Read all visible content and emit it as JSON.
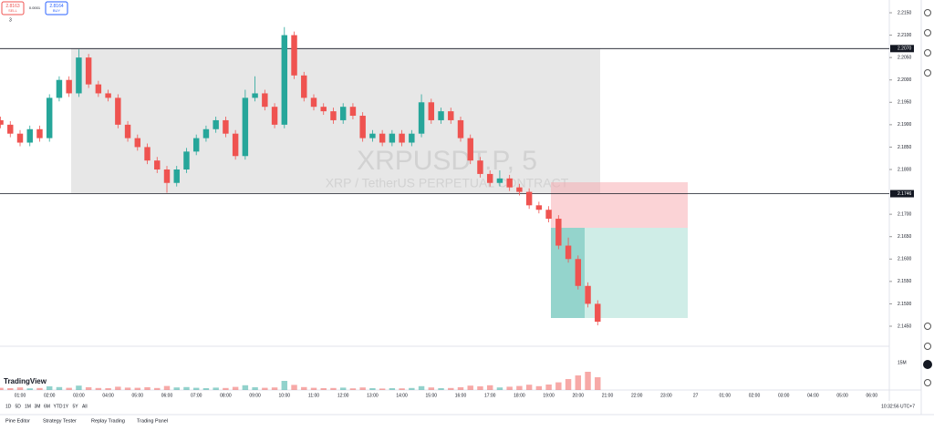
{
  "chart_data": {
    "type": "candlestick",
    "symbol": "XRPUSDT.P, 5",
    "description": "XRP / TetherUS PERPETUAL CONTRACT",
    "brand": "TradingView",
    "sell_price": "2.8163",
    "sell_label": "SELL",
    "spread": "0.0001",
    "buy_price": "2.8164",
    "buy_label": "BUY",
    "indicator_count": "3",
    "up_color": "#26a69a",
    "down_color": "#ef5350",
    "ylim": [
      2.145,
      2.215
    ],
    "yticks": [
      {
        "value": 2.215,
        "label": "2.2150"
      },
      {
        "value": 2.21,
        "label": "2.2100"
      },
      {
        "value": 2.205,
        "label": "2.2050"
      },
      {
        "value": 2.2,
        "label": "2.2000"
      },
      {
        "value": 2.195,
        "label": "2.1950"
      },
      {
        "value": 2.19,
        "label": "2.1900"
      },
      {
        "value": 2.185,
        "label": "2.1850"
      },
      {
        "value": 2.18,
        "label": "2.1800"
      },
      {
        "value": 2.17,
        "label": "2.1700"
      },
      {
        "value": 2.165,
        "label": "2.1650"
      },
      {
        "value": 2.16,
        "label": "2.1600"
      },
      {
        "value": 2.155,
        "label": "2.1550"
      },
      {
        "value": 2.15,
        "label": "2.1500"
      },
      {
        "value": 2.145,
        "label": "2.1450"
      }
    ],
    "levels": [
      {
        "value": 2.207,
        "label": "2.2070"
      },
      {
        "value": 2.1746,
        "label": "2.1746"
      }
    ],
    "xticks": [
      "01:00",
      "02:00",
      "03:00",
      "04:00",
      "05:00",
      "06:00",
      "07:00",
      "08:00",
      "09:00",
      "10:00",
      "11:00",
      "12:00",
      "13:00",
      "14:00",
      "15:00",
      "16:00",
      "17:00",
      "18:00",
      "19:00",
      "20:00",
      "21:00",
      "22:00",
      "23:00",
      "27",
      "01:00",
      "02:00",
      "03:00",
      "04:00",
      "05:00",
      "06:00"
    ],
    "candles": [
      [
        2.191,
        2.1918,
        2.1892,
        2.19
      ],
      [
        2.19,
        2.1908,
        2.1872,
        2.188
      ],
      [
        2.188,
        2.1888,
        2.1852,
        2.186
      ],
      [
        2.186,
        2.1898,
        2.1852,
        2.189
      ],
      [
        2.189,
        2.1898,
        2.1862,
        2.187
      ],
      [
        2.187,
        2.1968,
        2.1862,
        2.196
      ],
      [
        2.196,
        2.2008,
        2.1952,
        2.2
      ],
      [
        2.2,
        2.2008,
        2.1962,
        2.197
      ],
      [
        2.197,
        2.2068,
        2.1962,
        2.205
      ],
      [
        2.205,
        2.2058,
        2.1982,
        2.199
      ],
      [
        2.199,
        2.1998,
        2.1962,
        2.197
      ],
      [
        2.197,
        2.1978,
        2.1952,
        2.196
      ],
      [
        2.196,
        2.1968,
        2.1892,
        2.19
      ],
      [
        2.19,
        2.1908,
        2.1862,
        2.187
      ],
      [
        2.187,
        2.1878,
        2.1842,
        2.185
      ],
      [
        2.185,
        2.1858,
        2.1812,
        2.182
      ],
      [
        2.182,
        2.1828,
        2.1792,
        2.18
      ],
      [
        2.18,
        2.1808,
        2.1748,
        2.177
      ],
      [
        2.177,
        2.1808,
        2.1762,
        2.18
      ],
      [
        2.18,
        2.1848,
        2.1792,
        2.184
      ],
      [
        2.184,
        2.1878,
        2.1832,
        2.187
      ],
      [
        2.187,
        2.1898,
        2.1862,
        2.189
      ],
      [
        2.189,
        2.1918,
        2.1882,
        2.191
      ],
      [
        2.191,
        2.1918,
        2.1872,
        2.188
      ],
      [
        2.188,
        2.1888,
        2.1822,
        2.183
      ],
      [
        2.183,
        2.1978,
        2.1822,
        2.196
      ],
      [
        2.196,
        2.2008,
        2.1952,
        2.197
      ],
      [
        2.197,
        2.1978,
        2.1932,
        2.194
      ],
      [
        2.194,
        2.1948,
        2.1892,
        2.19
      ],
      [
        2.19,
        2.2118,
        2.1892,
        2.21
      ],
      [
        2.21,
        2.2108,
        2.2002,
        2.201
      ],
      [
        2.201,
        2.2018,
        2.1952,
        2.196
      ],
      [
        2.196,
        2.1968,
        2.1932,
        2.194
      ],
      [
        2.194,
        2.1948,
        2.1922,
        2.193
      ],
      [
        2.193,
        2.1938,
        2.1902,
        2.191
      ],
      [
        2.191,
        2.1948,
        2.1902,
        2.194
      ],
      [
        2.194,
        2.1948,
        2.1912,
        2.192
      ],
      [
        2.192,
        2.1928,
        2.1862,
        2.187
      ],
      [
        2.187,
        2.1888,
        2.1862,
        2.188
      ],
      [
        2.188,
        2.1888,
        2.1852,
        2.186
      ],
      [
        2.186,
        2.1888,
        2.1852,
        2.188
      ],
      [
        2.188,
        2.1888,
        2.1852,
        2.186
      ],
      [
        2.186,
        2.1888,
        2.1852,
        2.188
      ],
      [
        2.188,
        2.1968,
        2.1872,
        2.195
      ],
      [
        2.195,
        2.1958,
        2.1902,
        2.191
      ],
      [
        2.191,
        2.1938,
        2.1902,
        2.193
      ],
      [
        2.193,
        2.1938,
        2.1902,
        2.191
      ],
      [
        2.191,
        2.1918,
        2.1862,
        2.187
      ],
      [
        2.187,
        2.1878,
        2.1812,
        2.182
      ],
      [
        2.182,
        2.1828,
        2.1782,
        2.179
      ],
      [
        2.179,
        2.1798,
        2.1762,
        2.177
      ],
      [
        2.177,
        2.1798,
        2.1762,
        2.178
      ],
      [
        2.178,
        2.1788,
        2.1752,
        2.176
      ],
      [
        2.176,
        2.1768,
        2.1742,
        2.175
      ],
      [
        2.175,
        2.1758,
        2.1712,
        2.172
      ],
      [
        2.172,
        2.1728,
        2.1702,
        2.171
      ],
      [
        2.171,
        2.1718,
        2.1682,
        2.169
      ],
      [
        2.169,
        2.1698,
        2.1622,
        2.163
      ],
      [
        2.163,
        2.1648,
        2.1592,
        2.16
      ],
      [
        2.16,
        2.1608,
        2.1532,
        2.154
      ],
      [
        2.154,
        2.1548,
        2.1492,
        2.15
      ],
      [
        2.15,
        2.1508,
        2.1452,
        2.146
      ]
    ],
    "volumes": [
      1.2,
      1.0,
      1.4,
      0.9,
      1.1,
      2.0,
      1.6,
      1.2,
      2.4,
      1.5,
      1.1,
      1.0,
      1.8,
      1.3,
      1.2,
      1.5,
      1.1,
      2.2,
      1.4,
      1.6,
      1.2,
      1.0,
      1.3,
      1.1,
      1.7,
      2.6,
      1.5,
      1.2,
      1.4,
      5.0,
      2.8,
      1.6,
      1.2,
      1.0,
      1.1,
      1.3,
      0.9,
      1.4,
      1.0,
      0.8,
      1.0,
      0.9,
      1.1,
      2.1,
      1.4,
      1.0,
      1.1,
      1.5,
      2.4,
      2.0,
      2.6,
      1.4,
      1.8,
      2.2,
      2.9,
      2.1,
      3.0,
      4.2,
      6.0,
      8.0,
      10.0,
      7.0
    ],
    "vlim": [
      0,
      15
    ],
    "vticks": [
      {
        "value": 15,
        "label": "15M"
      }
    ],
    "ranges": [
      "1D",
      "5D",
      "1M",
      "3M",
      "6M",
      "YTD",
      "1Y",
      "5Y",
      "All"
    ],
    "clock": "10:32:56 UTC+7",
    "tabs": [
      "Pine Editor",
      "Strategy Tester",
      "Replay Trading",
      "Trading Panel"
    ]
  }
}
